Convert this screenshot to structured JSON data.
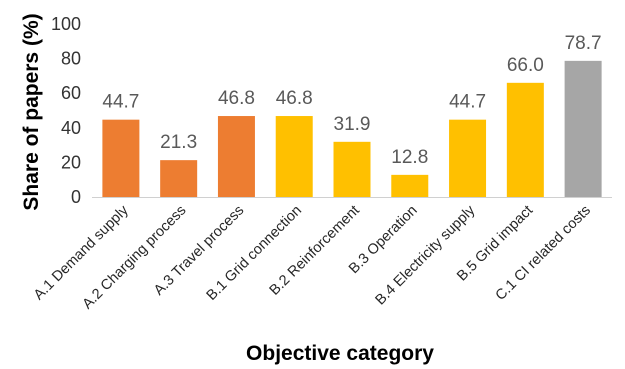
{
  "chart_data": {
    "type": "bar",
    "title": "",
    "xlabel": "Objective category",
    "ylabel": "Share of papers (%)",
    "ylim": [
      0,
      100
    ],
    "yticks": [
      "0",
      "20",
      "40",
      "60",
      "80",
      "100"
    ],
    "grid": false,
    "legend": "none",
    "categories": [
      "A.1 Demand supply",
      "A.2 Charging process",
      "A.3 Travel process",
      "B.1 Grid connection",
      "B.2 Reinforcement",
      "B.3 Operation",
      "B.4 Electricity supply",
      "B.5 Grid impact",
      "C.1 CI related costs"
    ],
    "values": [
      44.7,
      21.3,
      46.8,
      46.8,
      31.9,
      12.8,
      44.7,
      66.0,
      78.7
    ],
    "data_labels": [
      "44.7",
      "21.3",
      "46.8",
      "46.8",
      "31.9",
      "12.8",
      "44.7",
      "66.0",
      "78.7"
    ],
    "bar_colors": [
      "#ED7D31",
      "#ED7D31",
      "#ED7D31",
      "#FFC000",
      "#FFC000",
      "#FFC000",
      "#FFC000",
      "#FFC000",
      "#A6A6A6"
    ]
  }
}
